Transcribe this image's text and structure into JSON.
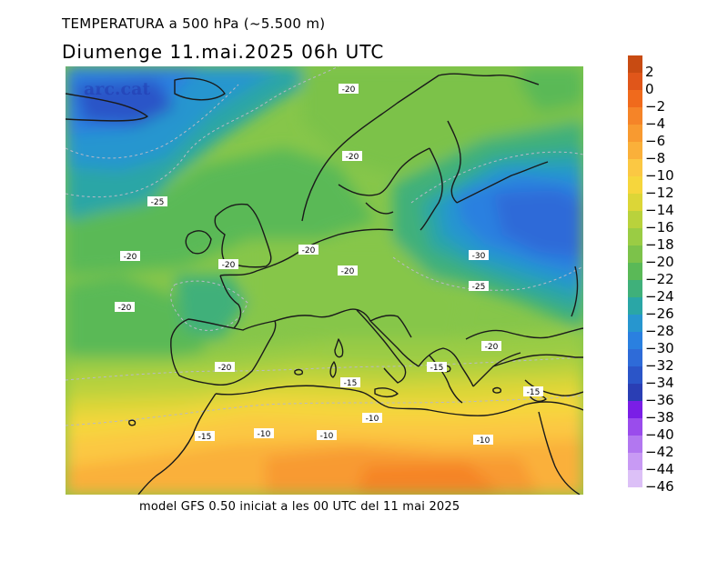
{
  "header": {
    "title_line1": "TEMPERATURA a 500 hPa (~5.500 m)",
    "title_line2": "Diumenge  11.mai.2025 06h UTC"
  },
  "footer": {
    "caption": "model GFS 0.50 iniciat a les 00 UTC del 11 mai 2025"
  },
  "watermark": "arc.cat",
  "colorbar": {
    "levels": [
      {
        "label": "2",
        "color": "#c84b12"
      },
      {
        "label": "0",
        "color": "#e0561a"
      },
      {
        "label": "−2",
        "color": "#f06a1c"
      },
      {
        "label": "−4",
        "color": "#f58428"
      },
      {
        "label": "−6",
        "color": "#f89a30"
      },
      {
        "label": "−8",
        "color": "#fab03a"
      },
      {
        "label": "−10",
        "color": "#fbc843"
      },
      {
        "label": "−12",
        "color": "#f6d63c"
      },
      {
        "label": "−14",
        "color": "#dcd637"
      },
      {
        "label": "−16",
        "color": "#b9d23c"
      },
      {
        "label": "−18",
        "color": "#9acc44"
      },
      {
        "label": "−20",
        "color": "#7cc24a"
      },
      {
        "label": "−22",
        "color": "#5ab957"
      },
      {
        "label": "−24",
        "color": "#3fb07a"
      },
      {
        "label": "−26",
        "color": "#2aa6a6"
      },
      {
        "label": "−28",
        "color": "#2796cf"
      },
      {
        "label": "−30",
        "color": "#2a80e0"
      },
      {
        "label": "−32",
        "color": "#2e6bd8"
      },
      {
        "label": "−34",
        "color": "#2b55c8"
      },
      {
        "label": "−36",
        "color": "#2a3eb4"
      },
      {
        "label": "−38",
        "color": "#7a1ee6"
      },
      {
        "label": "−40",
        "color": "#9a4cec"
      },
      {
        "label": "−42",
        "color": "#b277f0"
      },
      {
        "label": "−44",
        "color": "#c89af4"
      },
      {
        "label": "−46",
        "color": "#dcc0f7"
      }
    ]
  },
  "map_labels": [
    {
      "id": "n20-north",
      "text": "-20"
    },
    {
      "id": "n20-scand",
      "text": "-20"
    },
    {
      "id": "n25-atl",
      "text": "-25"
    },
    {
      "id": "n20-atl1",
      "text": "-20"
    },
    {
      "id": "n20-brit",
      "text": "-20"
    },
    {
      "id": "n20-fr",
      "text": "-20"
    },
    {
      "id": "n20-alps",
      "text": "-20"
    },
    {
      "id": "n30-rus",
      "text": "-30"
    },
    {
      "id": "n25-ukr",
      "text": "-25"
    },
    {
      "id": "n20-atl2",
      "text": "-20"
    },
    {
      "id": "n20-tur",
      "text": "-20"
    },
    {
      "id": "n20-iber",
      "text": "-20"
    },
    {
      "id": "n15-grc",
      "text": "-15"
    },
    {
      "id": "n15-sic",
      "text": "-15"
    },
    {
      "id": "n15-cyp",
      "text": "-15"
    },
    {
      "id": "n10-lyb",
      "text": "-10"
    },
    {
      "id": "n15-mor",
      "text": "-15"
    },
    {
      "id": "n10-alg1",
      "text": "-10"
    },
    {
      "id": "n10-alg2",
      "text": "-10"
    },
    {
      "id": "n10-egy",
      "text": "-10"
    }
  ]
}
